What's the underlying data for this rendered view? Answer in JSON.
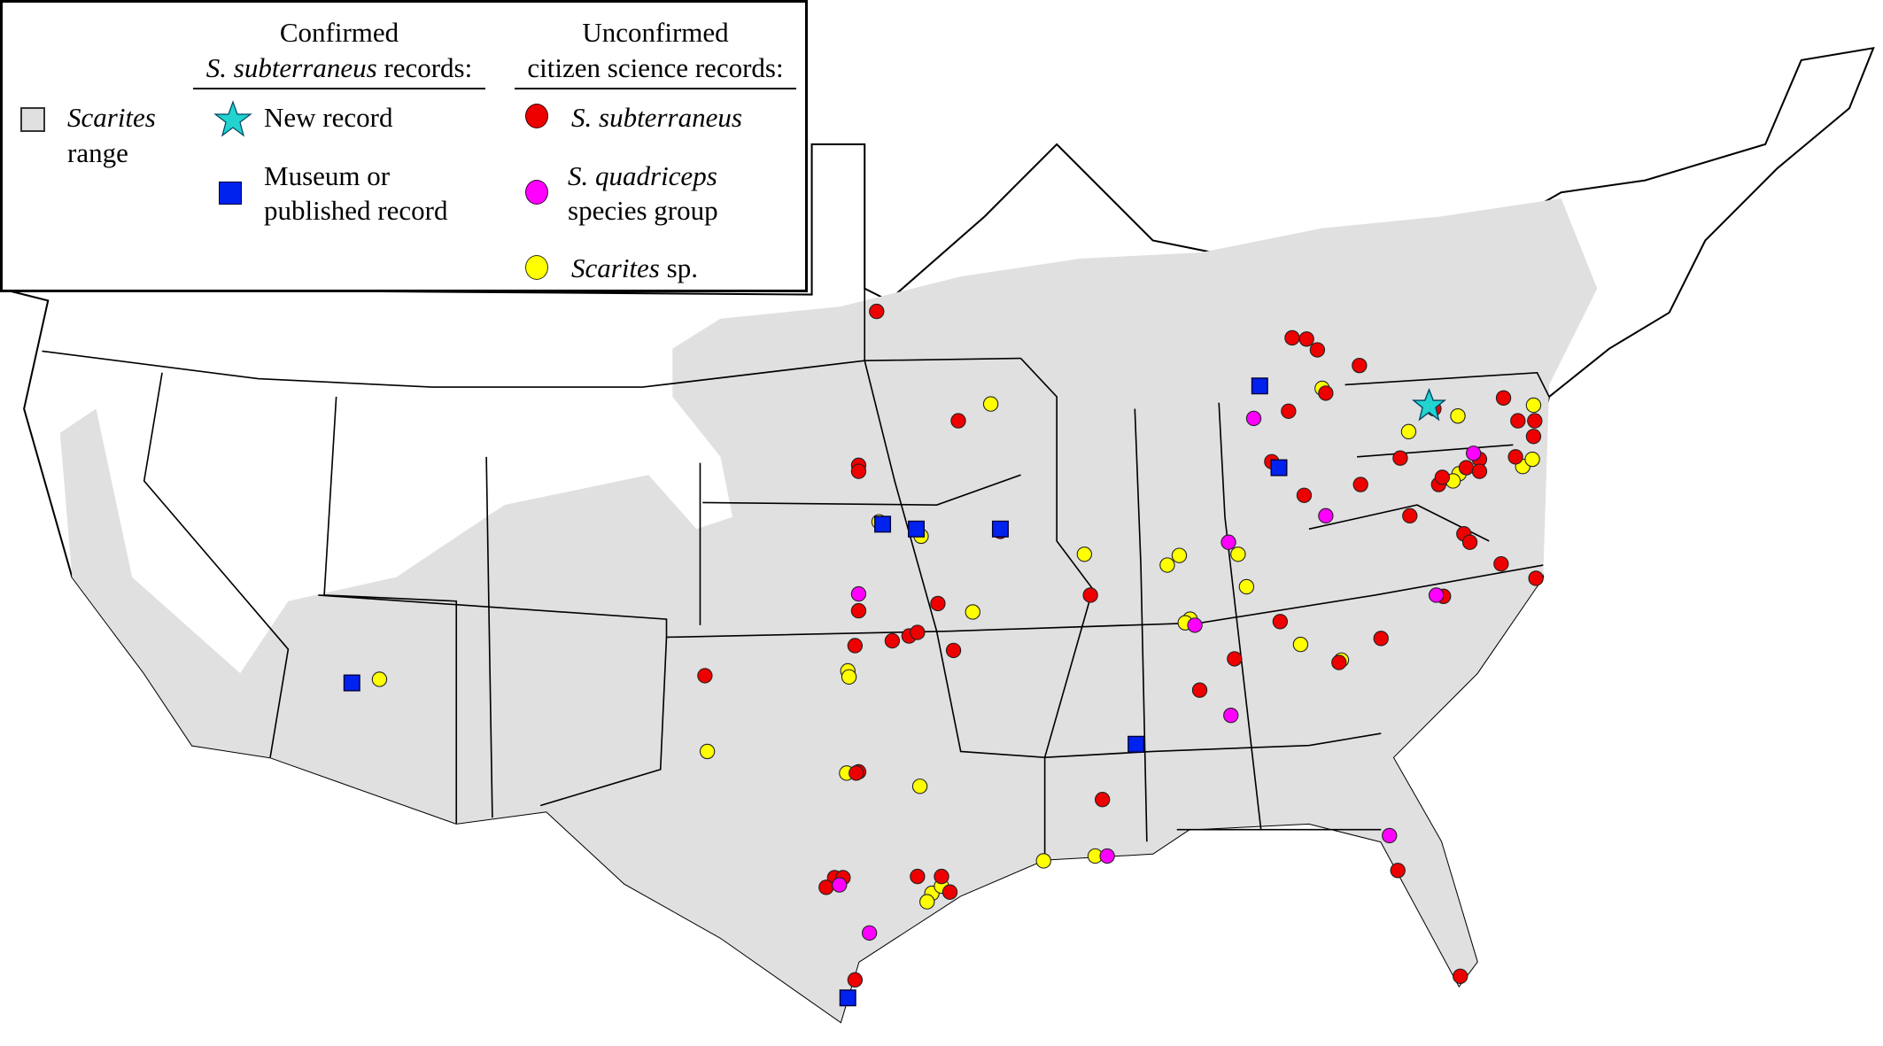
{
  "legend": {
    "range": {
      "italic": "Scarites",
      "text": "range",
      "color": "#e0e0e0"
    },
    "confirmed_header": {
      "line1": "Confirmed",
      "italic": "S. subterraneus",
      "rest": " records:"
    },
    "unconfirmed_header": {
      "line1": "Unconfirmed",
      "line2": "citizen science records:"
    },
    "new_record": {
      "label": "New record",
      "icon": "star-icon",
      "color": "#22d3cf"
    },
    "museum_record": {
      "line1": "Museum or",
      "line2": "published record",
      "icon": "square-icon",
      "color": "#0022ee"
    },
    "s_subterraneus": {
      "italic": "S. subterraneus",
      "icon": "circle-icon",
      "color": "#ee0000"
    },
    "s_quadriceps": {
      "italic": "S. quadriceps",
      "line2": "species group",
      "icon": "circle-icon",
      "color": "#ff00ff"
    },
    "scarites_sp": {
      "italic": "Scarites",
      "rest": " sp.",
      "icon": "circle-icon",
      "color": "#ffff00"
    }
  }
}
